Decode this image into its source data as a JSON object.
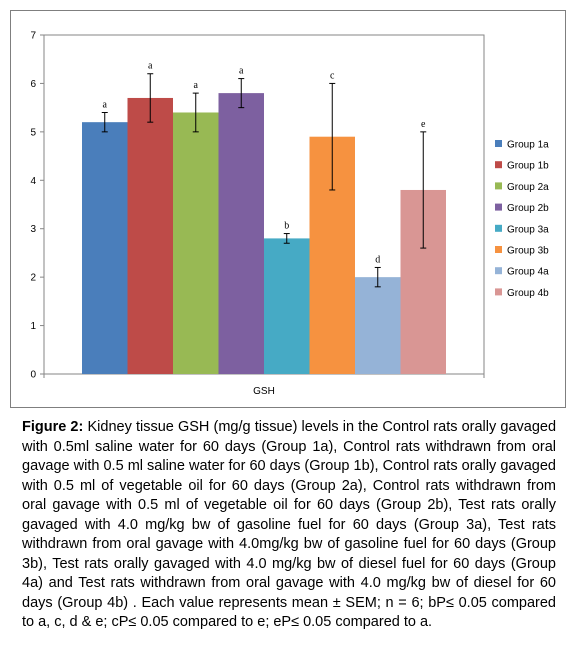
{
  "chart_data": {
    "type": "bar",
    "categories": [
      "GSH"
    ],
    "series": [
      {
        "name": "Group 1a",
        "values": [
          5.2
        ],
        "error": 0.2,
        "label": "a",
        "color": "#4a7ebb"
      },
      {
        "name": "Group 1b",
        "values": [
          5.7
        ],
        "error": 0.5,
        "label": "a",
        "color": "#be4b48"
      },
      {
        "name": "Group 2a",
        "values": [
          5.4
        ],
        "error": 0.4,
        "label": "a",
        "color": "#98b954"
      },
      {
        "name": "Group 2b",
        "values": [
          5.8
        ],
        "error": 0.3,
        "label": "a",
        "color": "#7d60a0"
      },
      {
        "name": "Group 3a",
        "values": [
          2.8
        ],
        "error": 0.1,
        "label": "b",
        "color": "#46aac5"
      },
      {
        "name": "Group 3b",
        "values": [
          4.9
        ],
        "error": 1.1,
        "label": "c",
        "color": "#f69240"
      },
      {
        "name": "Group 4a",
        "values": [
          2.0
        ],
        "error": 0.2,
        "label": "d",
        "color": "#95b3d7"
      },
      {
        "name": "Group 4b",
        "values": [
          3.8
        ],
        "error": 1.2,
        "label": "e",
        "color": "#d99694"
      }
    ],
    "y_ticks": [
      "0",
      "1",
      "2",
      "3",
      "4",
      "5",
      "6",
      "7"
    ],
    "ylim": [
      0,
      7
    ],
    "xlabel": "GSH",
    "ylabel": "",
    "title": "",
    "grid": false,
    "legend": "right"
  },
  "caption": {
    "label": "Figure 2:",
    "text": "Kidney tissue GSH (mg/g tissue) levels in the Control rats orally gavaged with 0.5ml saline water for 60 days (Group 1a), Control rats withdrawn from oral gavage with 0.5 ml saline water for 60 days (Group 1b), Control rats orally gavaged with 0.5 ml of vegetable oil for 60 days (Group 2a), Control rats withdrawn from oral gavage with 0.5 ml of vegetable oil for 60 days (Group 2b), Test rats orally gavaged with 4.0 mg/kg bw of gasoline fuel for 60 days (Group 3a), Test rats withdrawn from oral gavage with 4.0mg/kg bw of gasoline fuel for 60 days (Group 3b), Test rats orally gavaged with 4.0 mg/kg bw of diesel fuel for 60 days (Group 4a) and Test rats withdrawn from oral gavage with 4.0 mg/kg bw of diesel for 60 days (Group 4b) . Each value represents mean ± SEM; n = 6; bP≤ 0.05 compared to a, c, d & e; cP≤ 0.05 compared to e; eP≤ 0.05 compared to a."
  }
}
